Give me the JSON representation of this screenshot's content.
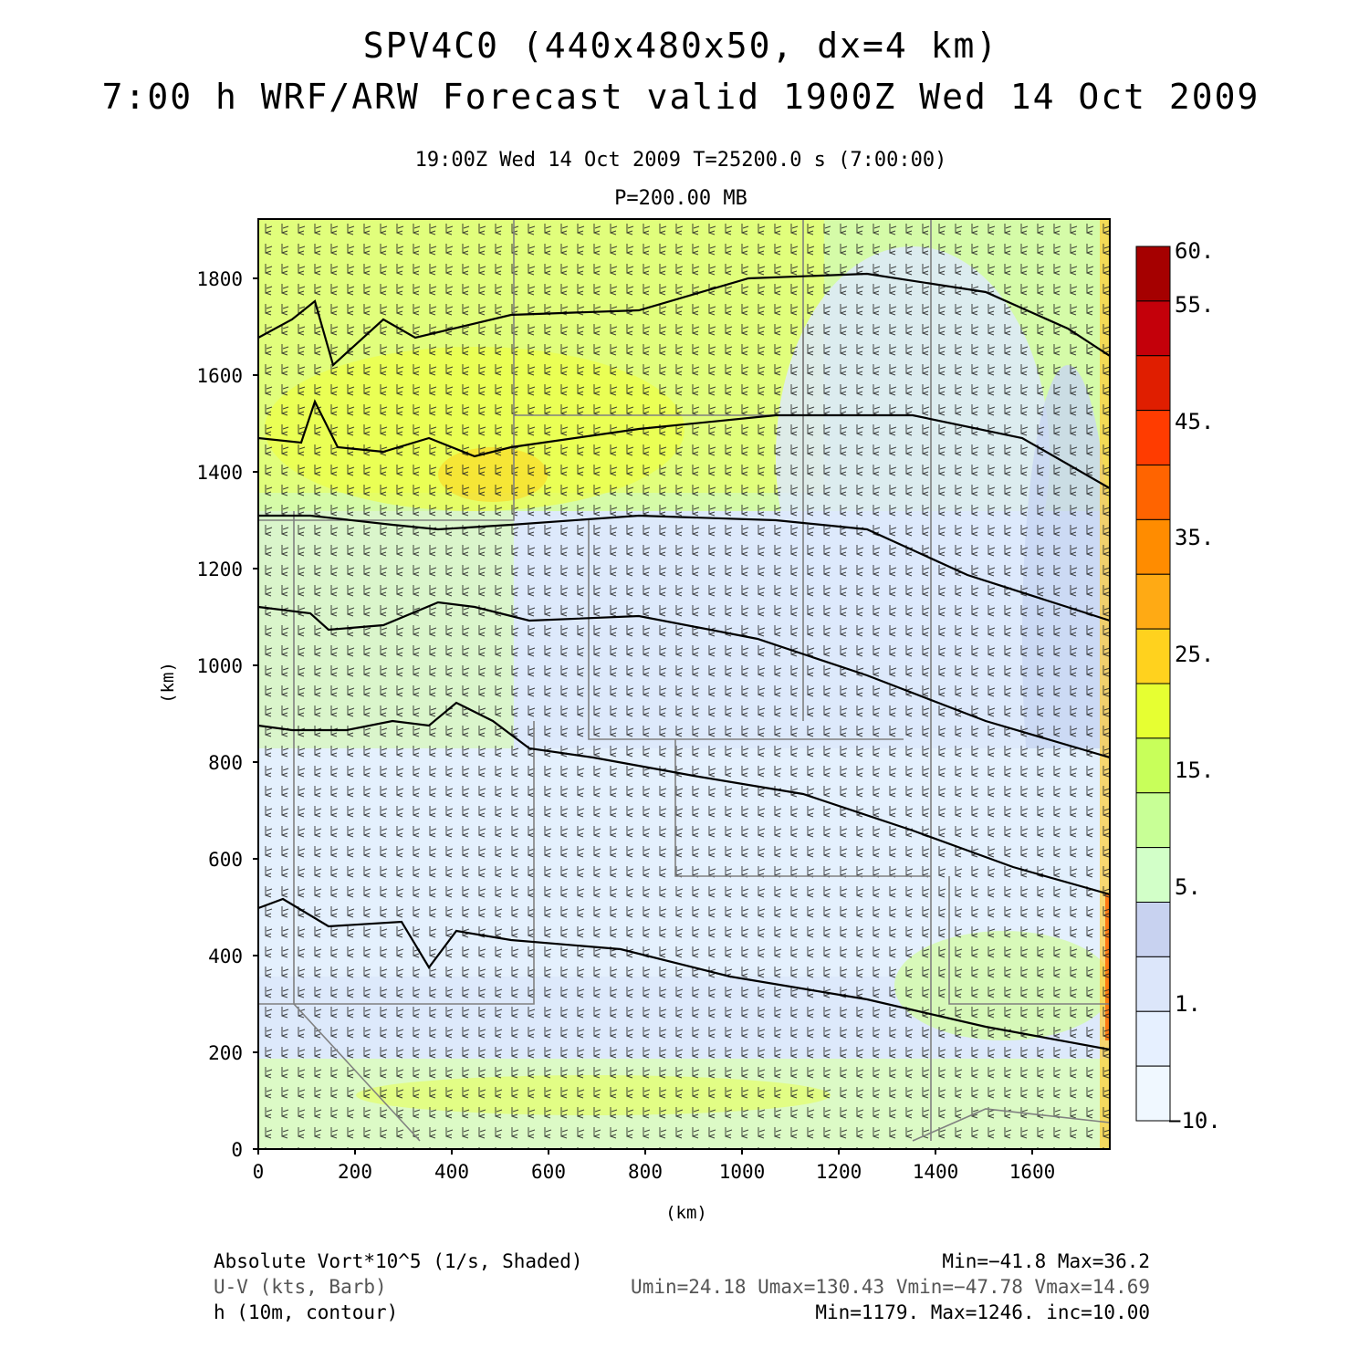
{
  "header": {
    "title_line1": "SPV4C0 (440x480x50, dx=4 km)",
    "title_line2": "7:00 h WRF/ARW Forecast valid 1900Z Wed 14 Oct 2009",
    "subtitle_line1": "19:00Z Wed 14 Oct 2009    T=25200.0 s (7:00:00)",
    "subtitle_line2": "P=200.00 MB"
  },
  "axes": {
    "x_label": "(km)",
    "y_label": "(km)",
    "x_ticks": [
      "0",
      "200",
      "400",
      "600",
      "800",
      "1000",
      "1200",
      "1400",
      "1600"
    ],
    "y_ticks": [
      "0",
      "200",
      "400",
      "600",
      "800",
      "1000",
      "1200",
      "1400",
      "1600",
      "1800"
    ]
  },
  "colorbar": {
    "labels": [
      "60.",
      "55.",
      "45.",
      "35.",
      "25.",
      "15.",
      "5.",
      "1.",
      "−10."
    ],
    "colors": [
      "#a50000",
      "#c4000a",
      "#e01e00",
      "#ff3c00",
      "#ff6400",
      "#ff8c00",
      "#ffaa14",
      "#ffd21e",
      "#e6ff32",
      "#c8ff5a",
      "#c8ff96",
      "#d2ffc8",
      "#c8d2f0",
      "#dce6fa",
      "#e6f0ff",
      "#f0f8ff"
    ]
  },
  "legend": {
    "field1_label": "Absolute Vort*10^5 (1/s, Shaded)",
    "field1_stats": "Min=−41.8 Max=36.2",
    "field2_label": "U-V (kts, Barb)",
    "field2_stats": "Umin=24.18 Umax=130.43 Vmin=−47.78 Vmax=14.69",
    "field3_label": "h (10m, contour)",
    "field3_stats": "Min=1179. Max=1246. inc=10.00"
  },
  "map_data": {
    "x_range_km": [
      0,
      1760
    ],
    "y_range_km": [
      0,
      1920
    ],
    "contour_field": "h (10m)",
    "shading_field": "Absolute Vort*10^5",
    "barb_field": "U-V (kts)",
    "accent_colors": {
      "frame": "#000000",
      "contour": "#000000",
      "borders": "#808080"
    }
  }
}
